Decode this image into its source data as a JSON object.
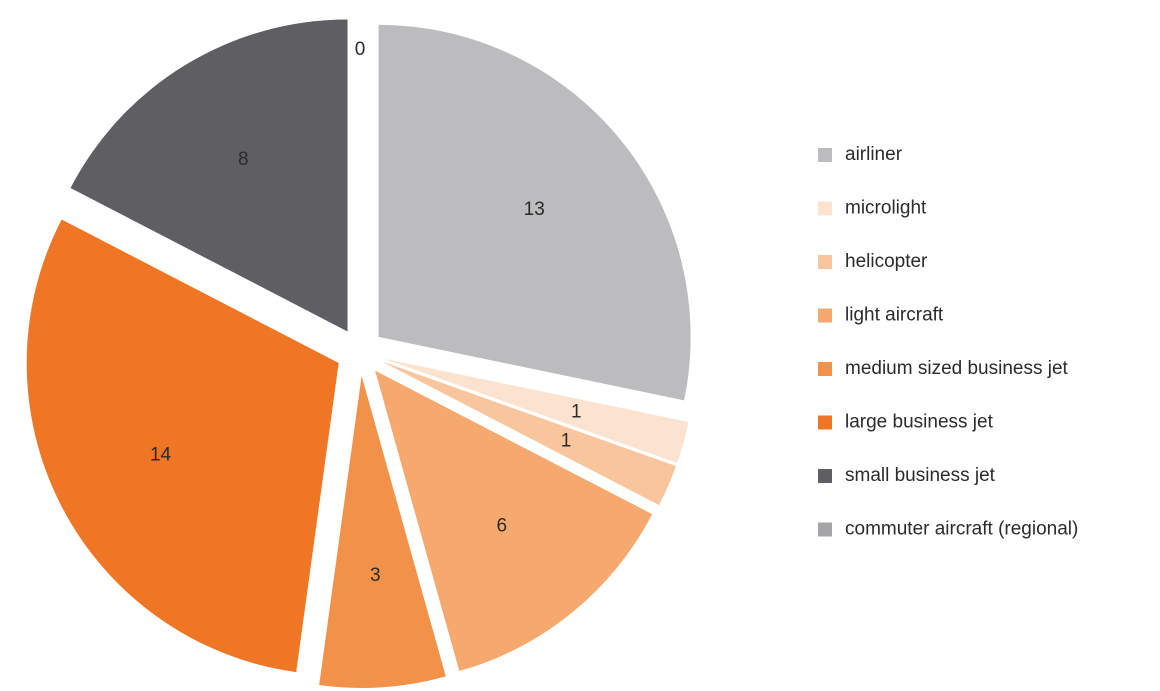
{
  "chart_data": {
    "type": "pie",
    "categories": [
      "airliner",
      "microlight",
      "helicopter",
      "light aircraft",
      "medium sized business jet",
      "large business jet",
      "small business jet",
      "commuter aircraft (regional)"
    ],
    "values": [
      13,
      1,
      1,
      6,
      3,
      14,
      8,
      0
    ],
    "colors": [
      "#bcbbbe",
      "#fce3cf",
      "#f8c59d",
      "#f5a96e",
      "#f2924a",
      "#ef7625",
      "#5f5e63",
      "#a5a5a8"
    ],
    "legend": "right"
  }
}
